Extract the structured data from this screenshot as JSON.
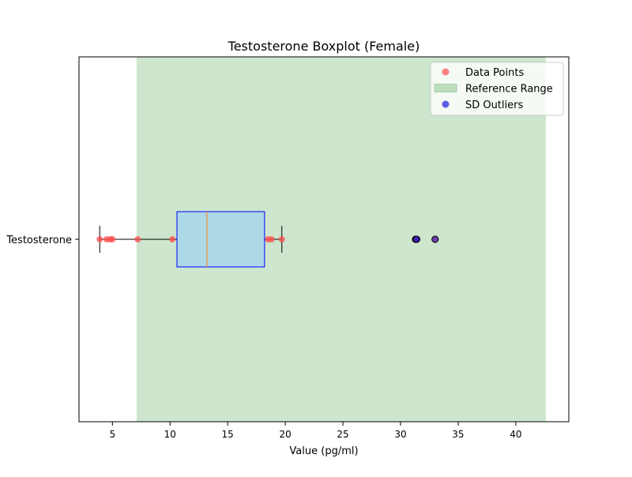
{
  "chart_data": {
    "type": "boxplot",
    "title": "Testosterone Boxplot (Female)",
    "xlabel": "Value (pg/ml)",
    "ylabel": "",
    "orientation": "horizontal",
    "categories": [
      "Testosterone"
    ],
    "xlim": [
      2.1,
      44.6
    ],
    "xticks": [
      5,
      10,
      15,
      20,
      25,
      30,
      35,
      40
    ],
    "grid": false,
    "legend_position": "upper right",
    "box": {
      "whisker_low": 3.9,
      "q1": 10.6,
      "median": 13.2,
      "q3": 18.2,
      "whisker_high": 19.7
    },
    "reference_range": [
      7.1,
      42.6
    ],
    "data_points": [
      3.9,
      4.5,
      4.8,
      5.0,
      7.2,
      10.2,
      18.5,
      18.8,
      19.7,
      31.3,
      31.4,
      33.0
    ],
    "outliers": [
      31.3,
      31.4,
      33.0
    ],
    "sd_outliers": [
      31.3,
      31.4,
      33.0
    ],
    "legend": [
      {
        "label": "Data Points",
        "kind": "point",
        "color": "#ff4d4d"
      },
      {
        "label": "Reference Range",
        "kind": "patch",
        "color": "#a4d1a4"
      },
      {
        "label": "SD Outliers",
        "kind": "point",
        "color": "#1a1ad9"
      }
    ],
    "colors": {
      "box_fill": "#add8e6",
      "box_edge": "#0000ff",
      "median": "#ff7f0e",
      "reference": "#a4d1a4",
      "data_points": "#ff4d4d",
      "sd_outliers": "#1a1ad9"
    }
  }
}
